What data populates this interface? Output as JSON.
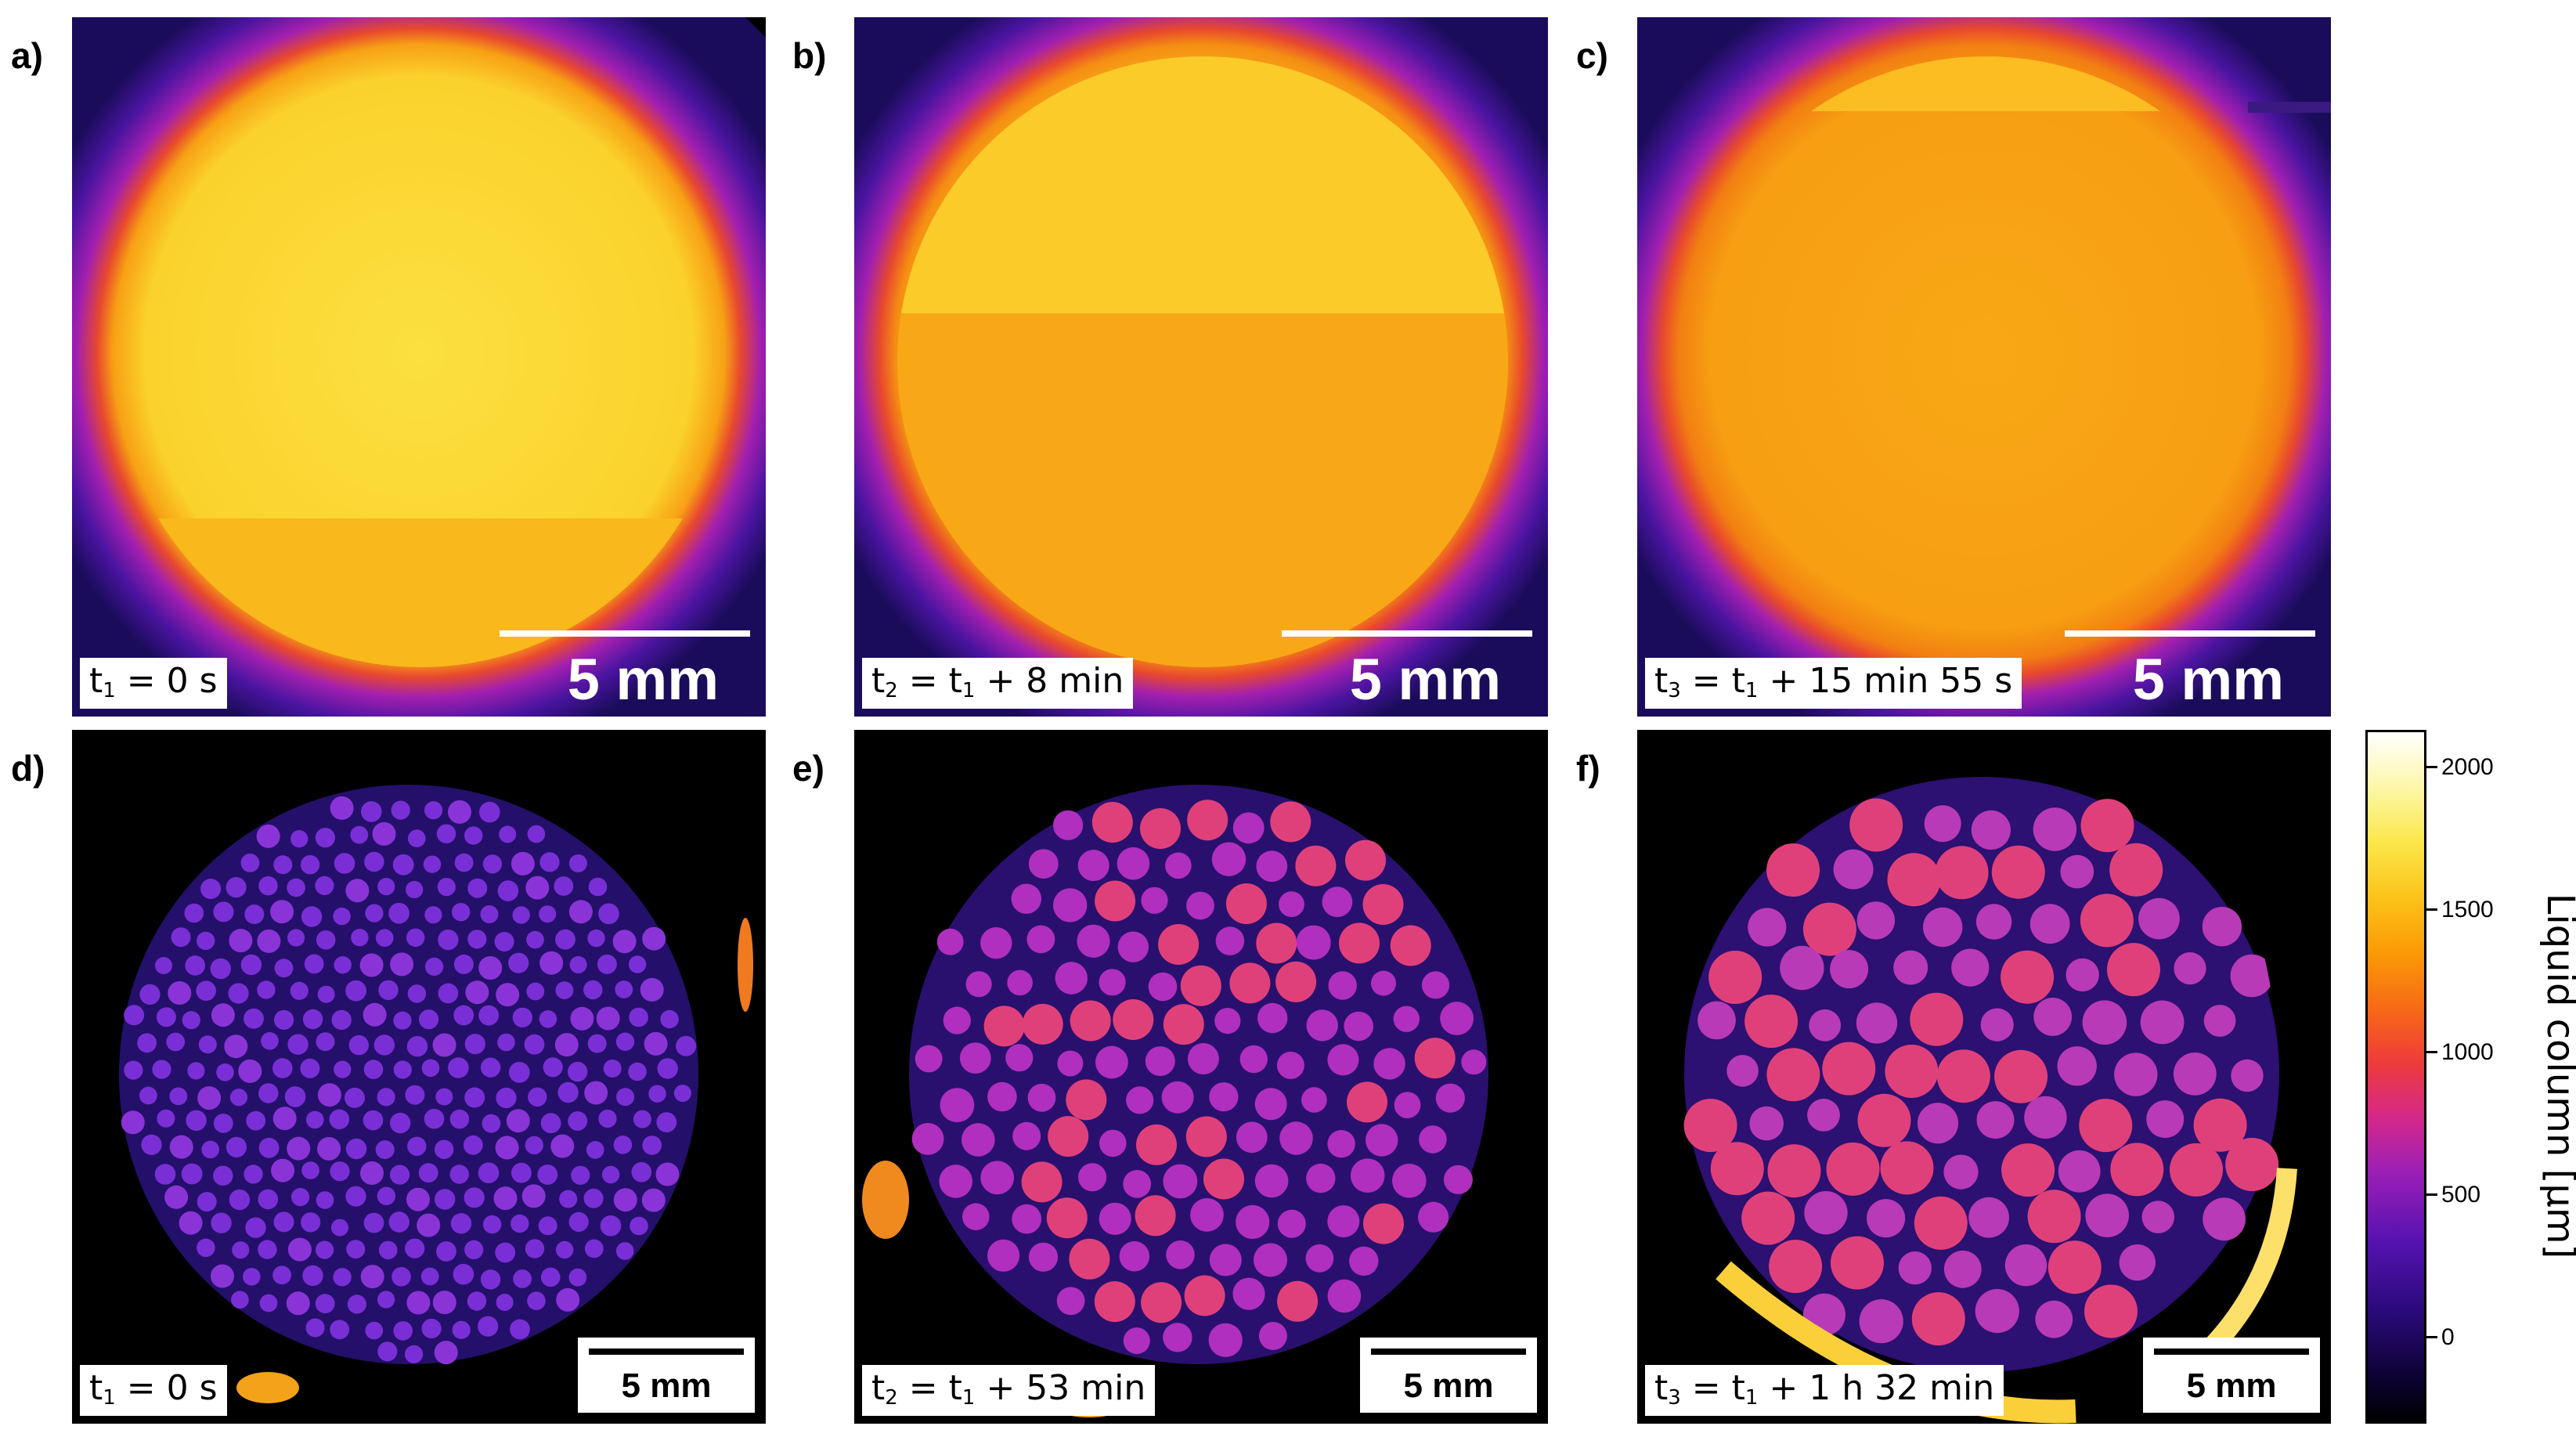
{
  "panels": [
    {
      "letter": "a)",
      "time_main": "t",
      "time_sub": "1",
      "time_rest": " = 0 s",
      "scale": "5 mm"
    },
    {
      "letter": "b)",
      "time_main": "t",
      "time_sub": "2",
      "time_mid": " = t",
      "time_sub2": "1",
      "time_rest": " + 8 min",
      "scale": "5 mm"
    },
    {
      "letter": "c)",
      "time_main": "t",
      "time_sub": "3",
      "time_mid": " = t",
      "time_sub2": "1",
      "time_rest": " + 15 min 55 s",
      "scale": "5 mm"
    },
    {
      "letter": "d)",
      "time_main": "t",
      "time_sub": "1",
      "time_rest": " = 0 s",
      "scale": "5 mm"
    },
    {
      "letter": "e)",
      "time_main": "t",
      "time_sub": "2",
      "time_mid": " = t",
      "time_sub2": "1",
      "time_rest": " + 53 min",
      "scale": "5 mm"
    },
    {
      "letter": "f)",
      "time_main": "t",
      "time_sub": "3",
      "time_mid": " = t",
      "time_sub2": "1",
      "time_rest": " + 1 h 32 min",
      "scale": "5 mm"
    }
  ],
  "colorbar": {
    "title": "Liquid column [µm]",
    "ticks": [
      "2000",
      "1500",
      "1000",
      "500",
      "0"
    ]
  },
  "colors": {
    "top_disc_bright": "#ffd21f",
    "top_disc_mid": "#f9a812",
    "bottom_background": "#1d0a5e",
    "bottom_droplet_small": "#7a2fd6",
    "bottom_droplet_large": "#e0407a"
  }
}
